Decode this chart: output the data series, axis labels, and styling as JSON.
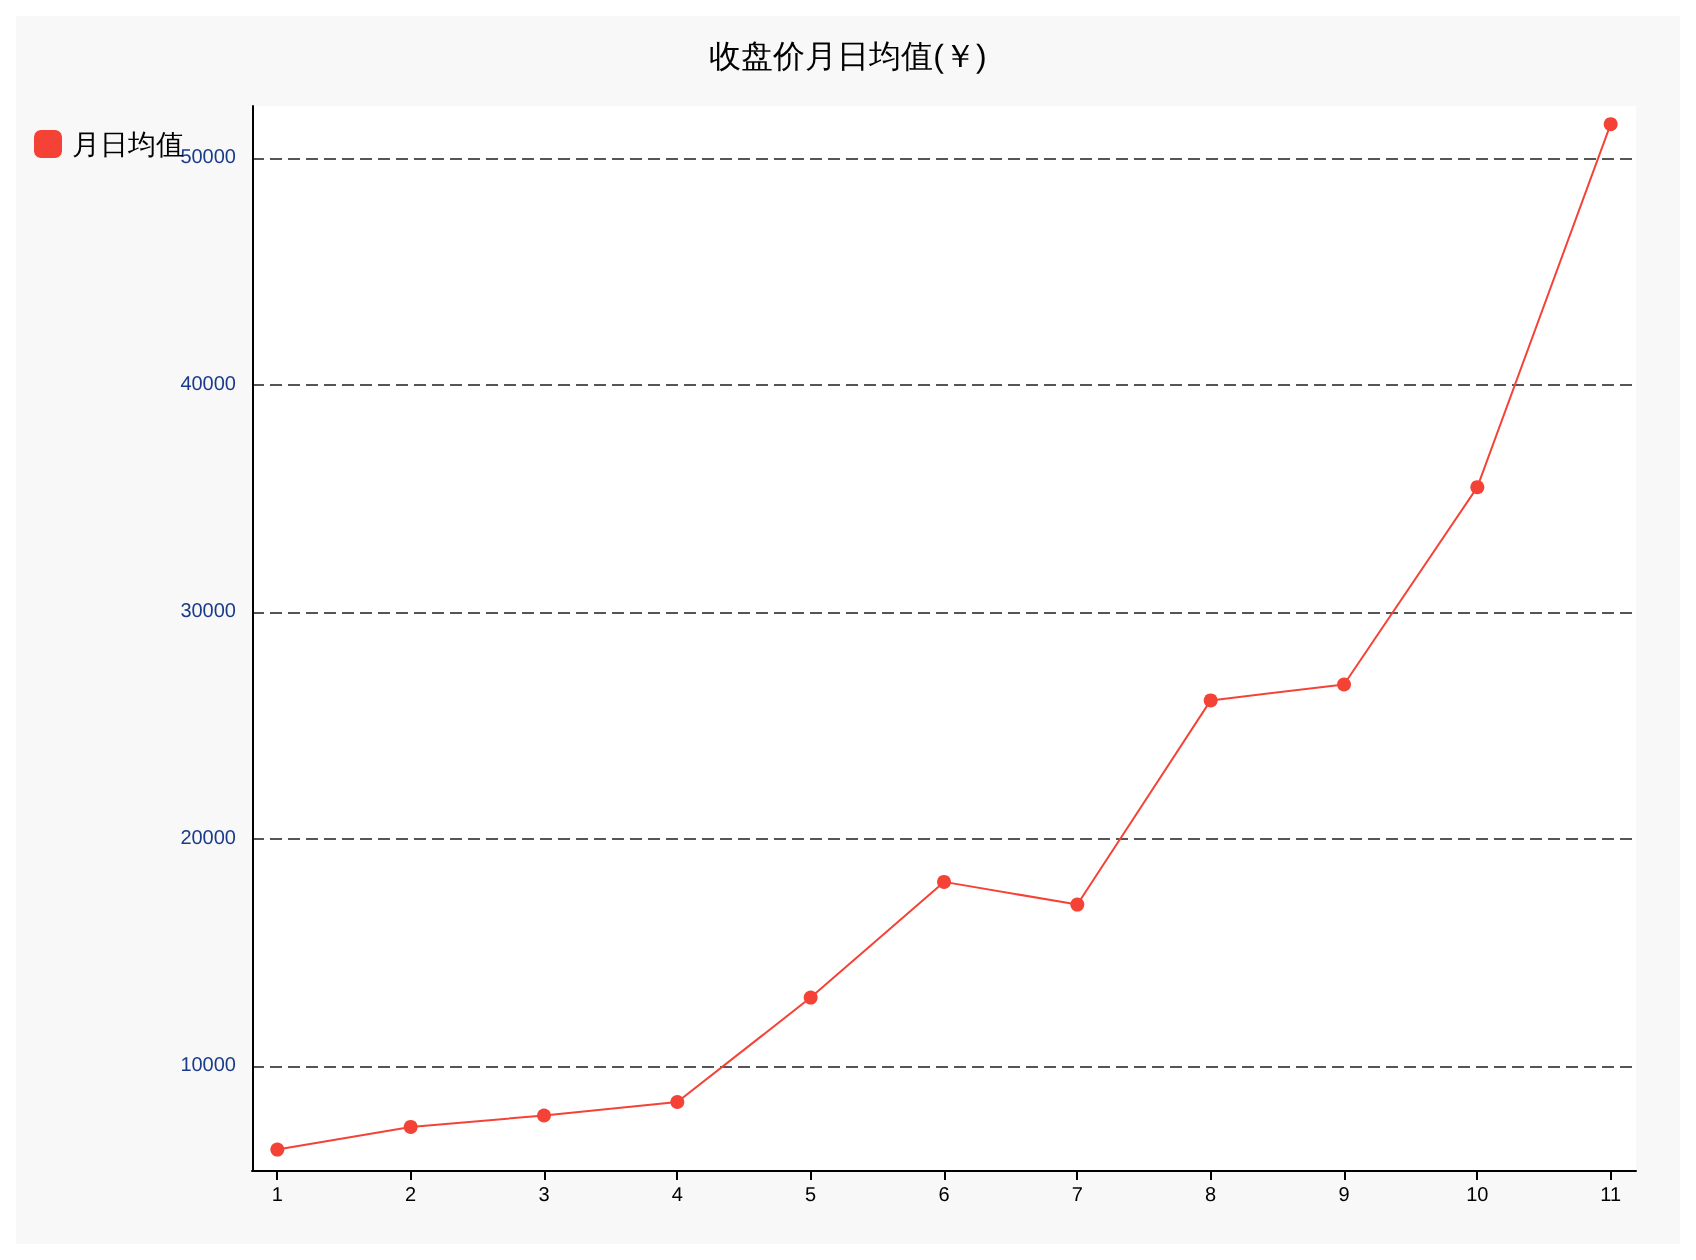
{
  "chart_data": {
    "type": "line",
    "title": "收盘价月日均值(￥)",
    "x": [
      1,
      2,
      3,
      4,
      5,
      6,
      7,
      8,
      9,
      10,
      11
    ],
    "series": [
      {
        "name": "月日均值",
        "color": "#f44336",
        "values": [
          6300,
          7300,
          7800,
          8400,
          13000,
          18100,
          17100,
          26100,
          26800,
          35500,
          51500
        ]
      }
    ],
    "xlim": [
      0.81,
      11.19
    ],
    "xticks": [
      1,
      2,
      3,
      4,
      5,
      6,
      7,
      8,
      9,
      10,
      11
    ],
    "ylim": [
      5400,
      52300
    ],
    "yticks": [
      10000,
      20000,
      30000,
      40000,
      50000
    ],
    "grid": "y",
    "legend": "top left",
    "marker": "circle",
    "line_style": "solid"
  }
}
